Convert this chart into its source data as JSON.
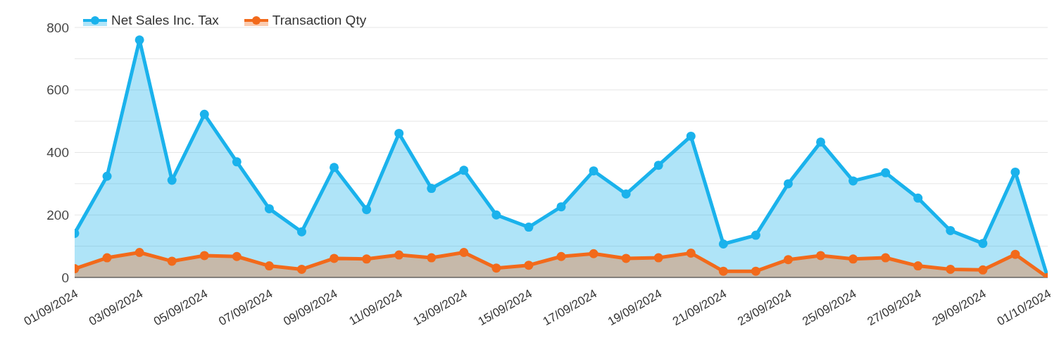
{
  "chart_data": {
    "type": "area",
    "categories": [
      "01/09/2024",
      null,
      "03/09/2024",
      null,
      "05/09/2024",
      null,
      "07/09/2024",
      null,
      "09/09/2024",
      null,
      "11/09/2024",
      null,
      "13/09/2024",
      null,
      "15/09/2024",
      null,
      "17/09/2024",
      null,
      "19/09/2024",
      null,
      "21/09/2024",
      null,
      "23/09/2024",
      null,
      "25/09/2024",
      null,
      "27/09/2024",
      null,
      "29/09/2024",
      null,
      "01/10/2024"
    ],
    "series": [
      {
        "name": "Net Sales Inc. Tax",
        "color": "#1ab2ec",
        "values": [
          141,
          324,
          760,
          311,
          522,
          370,
          220,
          146,
          352,
          217,
          461,
          285,
          343,
          200,
          161,
          226,
          341,
          267,
          359,
          452,
          107,
          135,
          300,
          433,
          309,
          335,
          254,
          150,
          109,
          337,
          0
        ]
      },
      {
        "name": "Transaction Qty",
        "color": "#f26a1b",
        "values": [
          28,
          63,
          80,
          52,
          70,
          67,
          37,
          26,
          61,
          59,
          72,
          63,
          80,
          30,
          39,
          67,
          76,
          61,
          63,
          78,
          20,
          20,
          57,
          70,
          59,
          63,
          37,
          26,
          24,
          74,
          0
        ]
      }
    ],
    "ylim": [
      0,
      800
    ],
    "yticks": [
      0,
      {
        "value": 100,
        "label": null
      },
      200,
      {
        "value": 300,
        "label": null
      },
      400,
      {
        "value": 500,
        "label": null
      },
      600,
      {
        "value": 700,
        "label": null
      },
      800
    ],
    "grid": "y",
    "legend": "top left",
    "marker": "circle",
    "line_style": "solid"
  }
}
